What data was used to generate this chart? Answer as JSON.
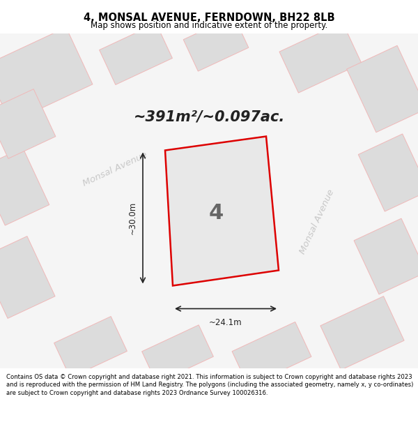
{
  "title": "4, MONSAL AVENUE, FERNDOWN, BH22 8LB",
  "subtitle": "Map shows position and indicative extent of the property.",
  "area_text": "~391m²/~0.097ac.",
  "label": "4",
  "dim_h": "~24.1m",
  "dim_v": "~30.0m",
  "street_label1": "Monsal Avenue",
  "street_label2": "Monsal Avenue",
  "footer": "Contains OS data © Crown copyright and database right 2021. This information is subject to Crown copyright and database rights 2023 and is reproduced with the permission of HM Land Registry. The polygons (including the associated geometry, namely x, y co-ordinates) are subject to Crown copyright and database rights 2023 Ordnance Survey 100026316.",
  "bg_color": "#f5f5f5",
  "building_fill": "#dcdcdc",
  "building_edge": "#c8c8c8",
  "building_edge_pink": "#f0b8b8",
  "highlight_fill": "#e8e8e8",
  "highlight_outline": "#dd0000",
  "arrow_color": "#222222",
  "street_color": "#c8c8c8",
  "text_color": "#000000",
  "area_text_color": "#222222",
  "label_color": "#666666"
}
